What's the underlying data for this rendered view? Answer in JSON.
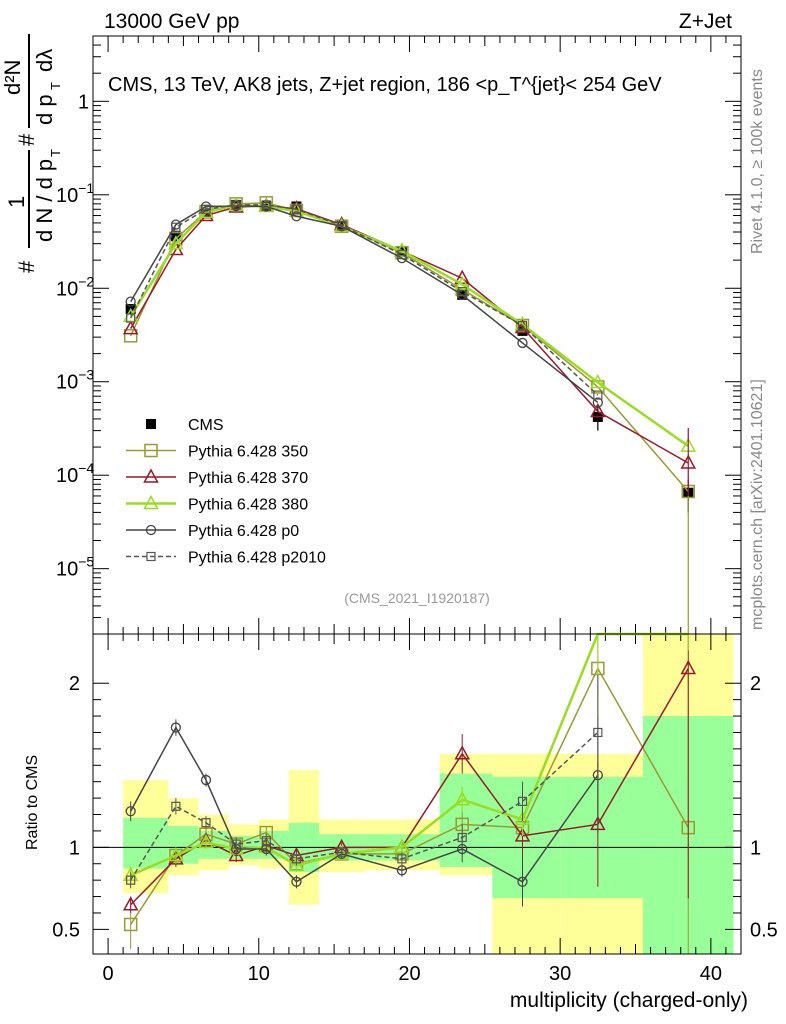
{
  "header": {
    "left": "13000 GeV pp",
    "right": "Z+Jet"
  },
  "side": {
    "rivet": "Rivet 4.1.0, ≥ 100k events",
    "mcplots": "mcplots.cern.ch [arXiv:2401.10621]"
  },
  "colors": {
    "cms": "#000000",
    "p350": "#999933",
    "p370": "#99182b",
    "p380": "#99dd22",
    "p0": "#444444",
    "p2010": "#555555",
    "band_inner": "#99ff99",
    "band_outer": "#ffff99"
  },
  "chart_data": [
    {
      "type": "line",
      "panel": "main",
      "title": "CMS, 13 TeV, AK8 jets, Z+jet region, 186 <p_T^{jet}< 254 GeV",
      "ylabel_parts": {
        "hash1": "#",
        "one": "1",
        "dN": "d N / d p",
        "sub": "T",
        "hash2": "#",
        "d2N": "d²N",
        "dpt": "d p",
        "dlambda": "dλ"
      },
      "yscale": "log",
      "ylim": [
        2e-06,
        5
      ],
      "xlim": [
        -1,
        42
      ],
      "yticks": [
        {
          "v": 1e-05,
          "label": "10",
          "exp": "−5"
        },
        {
          "v": 0.0001,
          "label": "10",
          "exp": "−4"
        },
        {
          "v": 0.001,
          "label": "10",
          "exp": "−3"
        },
        {
          "v": 0.01,
          "label": "10",
          "exp": "−2"
        },
        {
          "v": 0.1,
          "label": "10",
          "exp": "−1"
        },
        {
          "v": 1,
          "label": "1",
          "exp": ""
        }
      ],
      "watermark": "(CMS_2021_I1920187)",
      "legend": [
        "CMS",
        "Pythia 6.428 350",
        "Pythia 6.428 370",
        "Pythia 6.428 380",
        "Pythia 6.428 p0",
        "Pythia 6.428 p2010"
      ],
      "x": [
        1.5,
        4.5,
        6.5,
        8.5,
        10.5,
        12.5,
        15.5,
        19.5,
        23.5,
        27.5,
        32.5,
        38.5
      ],
      "series": [
        {
          "name": "CMS",
          "values": [
            0.006,
            0.036,
            0.063,
            0.078,
            0.075,
            0.075,
            0.048,
            0.025,
            0.0085,
            0.0035,
            0.00042,
            6.5e-05
          ],
          "errors": [
            0.0004,
            0.002,
            0.002,
            0.002,
            0.002,
            0.002,
            0.001,
            0.001,
            0.0005,
            0.0004,
            0.00012,
            2.5e-05
          ]
        },
        {
          "name": "Pythia 6.428 350",
          "values": [
            0.0031,
            0.034,
            0.066,
            0.08,
            0.082,
            0.068,
            0.046,
            0.024,
            0.0097,
            0.004,
            0.00088,
            6.7e-05
          ]
        },
        {
          "name": "Pythia 6.428 370",
          "values": [
            0.0037,
            0.026,
            0.06,
            0.074,
            0.076,
            0.071,
            0.048,
            0.025,
            0.0128,
            0.0038,
            0.00048,
            0.000135
          ]
        },
        {
          "name": "Pythia 6.428 380",
          "values": [
            0.005,
            0.03,
            0.065,
            0.077,
            0.075,
            0.067,
            0.046,
            0.025,
            0.011,
            0.0041,
            0.00098,
            0.000205
          ]
        },
        {
          "name": "Pythia 6.428 p0",
          "values": [
            0.0072,
            0.048,
            0.075,
            0.076,
            0.075,
            0.059,
            0.046,
            0.021,
            0.0085,
            0.0026,
            0.0006,
            0.0
          ]
        },
        {
          "name": "Pythia 6.428 p2010",
          "values": [
            0.0048,
            0.045,
            0.07,
            0.078,
            0.078,
            0.07,
            0.047,
            0.023,
            0.0092,
            0.004,
            0.00072,
            0.0
          ]
        }
      ]
    },
    {
      "type": "line",
      "panel": "ratio",
      "ylabel": "Ratio to CMS",
      "xlabel": "multiplicity (charged-only)",
      "ylim": [
        0.35,
        2.3
      ],
      "xlim": [
        -1,
        42
      ],
      "xticks": [
        0,
        10,
        20,
        30,
        40
      ],
      "yticks": [
        {
          "v": 0.5,
          "label": "0.5"
        },
        {
          "v": 1,
          "label": "1"
        },
        {
          "v": 2,
          "label": "2"
        }
      ],
      "bins": [
        [
          1,
          4
        ],
        [
          4,
          6
        ],
        [
          6,
          8
        ],
        [
          8,
          10
        ],
        [
          10,
          12
        ],
        [
          12,
          14
        ],
        [
          14,
          17
        ],
        [
          17,
          22
        ],
        [
          22,
          25.5
        ],
        [
          25.5,
          30
        ],
        [
          30,
          35.5
        ],
        [
          35.5,
          41.5
        ]
      ],
      "band_inner": [
        [
          0.87,
          1.18
        ],
        [
          0.9,
          1.13
        ],
        [
          0.93,
          1.1
        ],
        [
          0.93,
          1.07
        ],
        [
          0.93,
          1.1
        ],
        [
          0.85,
          1.15
        ],
        [
          0.92,
          1.08
        ],
        [
          0.92,
          1.08
        ],
        [
          0.88,
          1.45
        ],
        [
          0.69,
          1.43
        ],
        [
          0.69,
          1.43
        ],
        [
          0.35,
          1.8
        ]
      ],
      "band_outer": [
        [
          0.72,
          1.41
        ],
        [
          0.83,
          1.3
        ],
        [
          0.86,
          1.2
        ],
        [
          0.89,
          1.14
        ],
        [
          0.87,
          1.17
        ],
        [
          0.65,
          1.47
        ],
        [
          0.85,
          1.17
        ],
        [
          0.86,
          1.17
        ],
        [
          0.83,
          1.57
        ],
        [
          0.35,
          1.57
        ],
        [
          0.35,
          1.57
        ],
        [
          0.35,
          2.3
        ]
      ],
      "series": [
        {
          "name": "Pythia 6.428 350",
          "values": [
            0.53,
            0.95,
            1.08,
            1.02,
            1.09,
            0.9,
            0.96,
            0.96,
            1.14,
            1.12,
            2.09,
            1.12
          ],
          "errors": [
            0.15,
            0.05,
            0.04,
            0.04,
            0.04,
            0.04,
            0.03,
            0.04,
            0.08,
            0.12,
            0.3,
            1.0
          ]
        },
        {
          "name": "Pythia 6.428 370",
          "values": [
            0.65,
            0.93,
            1.04,
            0.95,
            1.01,
            0.95,
            1.0,
            1.0,
            1.57,
            1.07,
            1.14,
            2.09
          ],
          "errors": [
            0.05,
            0.05,
            0.04,
            0.04,
            0.04,
            0.04,
            0.03,
            0.04,
            0.12,
            0.15,
            0.38,
            1.4
          ]
        },
        {
          "name": "Pythia 6.428 380",
          "values": [
            0.83,
            0.95,
            1.03,
            0.99,
            1.0,
            0.89,
            0.96,
            1.0,
            1.29,
            1.17,
            2.33,
            3.2
          ],
          "errors": [
            0.05,
            0.05,
            0.04,
            0.04,
            0.04,
            0.04,
            0.03,
            0.04,
            0.08,
            0.1,
            0.3,
            1.0
          ]
        },
        {
          "name": "Pythia 6.428 p0",
          "values": [
            1.22,
            1.73,
            1.41,
            0.99,
            0.99,
            0.79,
            0.96,
            0.86,
            0.99,
            0.79,
            1.44,
            0.0
          ],
          "errors": [
            0.06,
            0.05,
            0.04,
            0.04,
            0.04,
            0.04,
            0.03,
            0.04,
            0.08,
            0.15,
            0.35,
            0.0
          ]
        },
        {
          "name": "Pythia 6.428 p2010",
          "values": [
            0.8,
            1.25,
            1.15,
            1.02,
            1.04,
            0.93,
            0.97,
            0.93,
            1.06,
            1.28,
            1.7,
            0.0
          ],
          "errors": [
            0.05,
            0.05,
            0.04,
            0.04,
            0.04,
            0.04,
            0.03,
            0.04,
            0.08,
            0.12,
            0.35,
            0.0
          ]
        }
      ]
    }
  ]
}
